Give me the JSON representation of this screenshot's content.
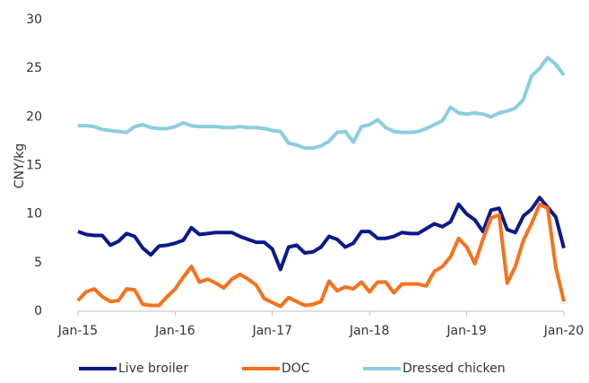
{
  "chart_data": {
    "type": "line",
    "y_label": "CNY/kg",
    "categories": [
      "Jan-15",
      null,
      null,
      null,
      null,
      null,
      null,
      null,
      null,
      null,
      null,
      null,
      "Jan-16",
      null,
      null,
      null,
      null,
      null,
      null,
      null,
      null,
      null,
      null,
      null,
      "Jan-17",
      null,
      null,
      null,
      null,
      null,
      null,
      null,
      null,
      null,
      null,
      null,
      "Jan-18",
      null,
      null,
      null,
      null,
      null,
      null,
      null,
      null,
      null,
      null,
      null,
      "Jan-19",
      null,
      null,
      null,
      null,
      null,
      null,
      null,
      null,
      null,
      null,
      null,
      "Jan-20"
    ],
    "series": [
      {
        "name": "Live broiler",
        "color": "#0a1a8c",
        "values": [
          8.2,
          7.9,
          7.8,
          7.8,
          6.8,
          7.2,
          8.0,
          7.7,
          6.5,
          5.8,
          6.7,
          6.8,
          7.0,
          7.3,
          8.6,
          7.9,
          8.0,
          8.1,
          8.1,
          8.1,
          7.7,
          7.4,
          7.1,
          7.1,
          6.4,
          4.3,
          6.6,
          6.8,
          6.0,
          6.1,
          6.6,
          7.7,
          7.4,
          6.6,
          7.0,
          8.2,
          8.2,
          7.5,
          7.5,
          7.7,
          8.1,
          8.0,
          8.0,
          8.5,
          9.0,
          8.7,
          9.2,
          11.0,
          10.0,
          9.4,
          8.2,
          10.4,
          10.6,
          8.4,
          8.1,
          9.8,
          10.5,
          11.7,
          10.7,
          9.7,
          6.5
        ]
      },
      {
        "name": "DOC",
        "color": "#f7711c",
        "values": [
          1.1,
          2.0,
          2.3,
          1.5,
          1.0,
          1.1,
          2.3,
          2.2,
          0.7,
          0.6,
          0.6,
          1.5,
          2.3,
          3.5,
          4.6,
          3.0,
          3.3,
          2.9,
          2.4,
          3.3,
          3.8,
          3.3,
          2.7,
          1.3,
          0.9,
          0.5,
          1.4,
          1.0,
          0.6,
          0.7,
          1.0,
          3.1,
          2.1,
          2.5,
          2.3,
          3.0,
          2.0,
          3.0,
          3.0,
          1.9,
          2.8,
          2.8,
          2.8,
          2.6,
          4.1,
          4.6,
          5.6,
          7.5,
          6.6,
          4.9,
          7.4,
          9.6,
          9.9,
          2.9,
          4.6,
          7.3,
          9.0,
          11.0,
          10.6,
          4.5,
          1.0
        ]
      },
      {
        "name": "Dressed chicken",
        "color": "#8ccde0",
        "values": [
          19.1,
          19.1,
          19.0,
          18.7,
          18.6,
          18.5,
          18.4,
          19.0,
          19.2,
          18.9,
          18.8,
          18.8,
          19.0,
          19.4,
          19.1,
          19.0,
          19.0,
          19.0,
          18.9,
          18.9,
          19.0,
          18.9,
          18.9,
          18.8,
          18.6,
          18.5,
          17.3,
          17.1,
          16.8,
          16.8,
          17.0,
          17.5,
          18.4,
          18.5,
          17.4,
          19.0,
          19.2,
          19.7,
          18.9,
          18.5,
          18.4,
          18.4,
          18.5,
          18.8,
          19.2,
          19.6,
          21.0,
          20.4,
          20.3,
          20.4,
          20.3,
          20.0,
          20.4,
          20.6,
          20.9,
          21.8,
          24.2,
          25.0,
          26.1,
          25.4,
          24.3
        ]
      }
    ],
    "ylim": [
      0,
      30
    ],
    "yticks": [
      0,
      5,
      10,
      15,
      20,
      25,
      30
    ],
    "legend": "bottom"
  }
}
